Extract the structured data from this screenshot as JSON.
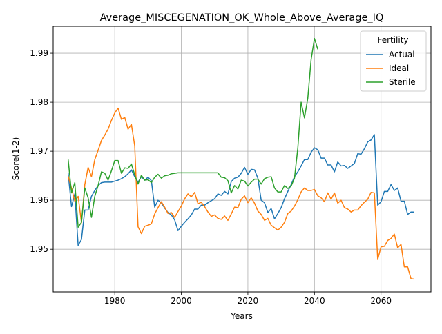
{
  "chart_data": {
    "type": "line",
    "title": "Average_MISCEGENATION_OK_Whole_Above_Average_IQ",
    "xlabel": "Years",
    "ylabel": "Score(1-2)",
    "xlim": [
      1961.5,
      2075
    ],
    "ylim": [
      1.9413,
      1.9955
    ],
    "x_ticks": [
      1980,
      2000,
      2020,
      2040,
      2060
    ],
    "x_tick_labels": [
      "1980",
      "2000",
      "2020",
      "2040",
      "2060"
    ],
    "y_ticks": [
      1.95,
      1.96,
      1.97,
      1.98,
      1.99
    ],
    "y_tick_labels": [
      "1.95",
      "1.96",
      "1.97",
      "1.98",
      "1.99"
    ],
    "grid": true,
    "legend": {
      "title": "Fertility",
      "placement": "top-right"
    },
    "series": [
      {
        "name": "Actual",
        "color": "#1f77b4",
        "x": [
          1966,
          1967,
          1968,
          1969,
          1970,
          1971,
          1972,
          1973,
          1974,
          1975,
          1976,
          1977,
          1978,
          1979,
          1980,
          1981,
          1982,
          1983,
          1984,
          1985,
          1986,
          1987,
          1988,
          1989,
          1990,
          1991,
          1992,
          1993,
          1994,
          1995,
          1996,
          1997,
          1998,
          1999,
          2000,
          2001,
          2002,
          2003,
          2004,
          2005,
          2006,
          2007,
          2008,
          2009,
          2010,
          2011,
          2012,
          2013,
          2014,
          2015,
          2016,
          2017,
          2018,
          2019,
          2020,
          2021,
          2022,
          2023,
          2024,
          2025,
          2026,
          2027,
          2028,
          2029,
          2030,
          2031,
          2032,
          2033,
          2034,
          2035,
          2036,
          2037,
          2038,
          2039,
          2040,
          2041,
          2042,
          2043,
          2044,
          2045,
          2046,
          2047,
          2048,
          2049,
          2050,
          2051,
          2052,
          2053,
          2054,
          2055,
          2056,
          2057,
          2058,
          2059,
          2060,
          2061,
          2062,
          2063,
          2064,
          2065,
          2066,
          2067,
          2068,
          2069,
          2070
        ],
        "values": [
          1.9655,
          1.9587,
          1.9613,
          1.9508,
          1.952,
          1.958,
          1.958,
          1.9608,
          1.962,
          1.963,
          1.9636,
          1.9637,
          1.9637,
          1.9637,
          1.9639,
          1.9641,
          1.9644,
          1.9648,
          1.9654,
          1.9662,
          1.9648,
          1.9637,
          1.9648,
          1.9641,
          1.9647,
          1.964,
          1.9586,
          1.96,
          1.9595,
          1.9584,
          1.9575,
          1.957,
          1.956,
          1.9538,
          1.9547,
          1.9555,
          1.9562,
          1.957,
          1.9582,
          1.9582,
          1.959,
          1.959,
          1.9595,
          1.9599,
          1.9603,
          1.9613,
          1.961,
          1.9618,
          1.9613,
          1.9638,
          1.9645,
          1.9647,
          1.9655,
          1.9667,
          1.9653,
          1.9663,
          1.9662,
          1.9645,
          1.96,
          1.9595,
          1.9575,
          1.9583,
          1.9562,
          1.9573,
          1.9585,
          1.9603,
          1.9618,
          1.9632,
          1.9648,
          1.9658,
          1.967,
          1.9683,
          1.9683,
          1.9698,
          1.9707,
          1.9703,
          1.9686,
          1.9686,
          1.9672,
          1.9672,
          1.9658,
          1.9678,
          1.967,
          1.9671,
          1.9665,
          1.967,
          1.9675,
          1.9695,
          1.9694,
          1.9705,
          1.9719,
          1.9723,
          1.9734,
          1.959,
          1.9597,
          1.9618,
          1.9618,
          1.9632,
          1.962,
          1.9625,
          1.9598,
          1.9598,
          1.9571,
          1.9576,
          1.9576
        ]
      },
      {
        "name": "Ideal",
        "color": "#ff7f0e",
        "x": [
          1966,
          1967,
          1968,
          1969,
          1970,
          1971,
          1972,
          1973,
          1974,
          1975,
          1976,
          1977,
          1978,
          1979,
          1980,
          1981,
          1982,
          1983,
          1984,
          1985,
          1986,
          1987,
          1988,
          1989,
          1990,
          1991,
          1992,
          1993,
          1994,
          1995,
          1996,
          1997,
          1998,
          1999,
          2000,
          2001,
          2002,
          2003,
          2004,
          2005,
          2006,
          2007,
          2008,
          2009,
          2010,
          2011,
          2012,
          2013,
          2014,
          2015,
          2016,
          2017,
          2018,
          2019,
          2020,
          2021,
          2022,
          2023,
          2024,
          2025,
          2026,
          2027,
          2028,
          2029,
          2030,
          2031,
          2032,
          2033,
          2034,
          2035,
          2036,
          2037,
          2038,
          2039,
          2040,
          2041,
          2042,
          2043,
          2044,
          2045,
          2046,
          2047,
          2048,
          2049,
          2050,
          2051,
          2052,
          2053,
          2054,
          2055,
          2056,
          2057,
          2058,
          2059,
          2060,
          2061,
          2062,
          2063,
          2064,
          2065,
          2066,
          2067,
          2068,
          2069,
          2070
        ],
        "values": [
          1.9649,
          1.9625,
          1.9598,
          1.9608,
          1.9554,
          1.9632,
          1.9667,
          1.9648,
          1.9683,
          1.9702,
          1.9722,
          1.9733,
          1.9745,
          1.9763,
          1.9778,
          1.9788,
          1.9765,
          1.9769,
          1.9745,
          1.9755,
          1.9711,
          1.9546,
          1.9532,
          1.9547,
          1.9549,
          1.9552,
          1.9572,
          1.9585,
          1.9597,
          1.9586,
          1.9573,
          1.9575,
          1.9565,
          1.9577,
          1.9588,
          1.9603,
          1.9613,
          1.9607,
          1.9616,
          1.9593,
          1.9596,
          1.9587,
          1.9576,
          1.9567,
          1.957,
          1.9563,
          1.9561,
          1.9568,
          1.9559,
          1.9572,
          1.9586,
          1.9585,
          1.9602,
          1.9609,
          1.9595,
          1.9605,
          1.9594,
          1.9578,
          1.9571,
          1.9559,
          1.9563,
          1.9549,
          1.9544,
          1.9539,
          1.9545,
          1.9555,
          1.9573,
          1.9578,
          1.9588,
          1.9601,
          1.9617,
          1.9625,
          1.962,
          1.962,
          1.9622,
          1.9609,
          1.9605,
          1.9597,
          1.9615,
          1.9602,
          1.9615,
          1.9594,
          1.96,
          1.9585,
          1.9582,
          1.9576,
          1.958,
          1.958,
          1.9589,
          1.9596,
          1.9602,
          1.9616,
          1.9615,
          1.9479,
          1.9505,
          1.9506,
          1.9518,
          1.9522,
          1.9531,
          1.9503,
          1.951,
          1.9464,
          1.9464,
          1.944,
          1.9439
        ]
      },
      {
        "name": "Sterile",
        "color": "#2ca02c",
        "x": [
          1966,
          1967,
          1968,
          1969,
          1970,
          1971,
          1972,
          1973,
          1974,
          1975,
          1976,
          1977,
          1978,
          1979,
          1980,
          1981,
          1982,
          1983,
          1984,
          1985,
          1986,
          1987,
          1988,
          1989,
          1990,
          1991,
          1992,
          1993,
          1994,
          1995,
          1996,
          1997,
          1998,
          1999,
          2000,
          2001,
          2002,
          2003,
          2004,
          2005,
          2006,
          2007,
          2008,
          2009,
          2010,
          2011,
          2012,
          2013,
          2014,
          2015,
          2016,
          2017,
          2018,
          2019,
          2020,
          2021,
          2022,
          2023,
          2024,
          2025,
          2026,
          2027,
          2028,
          2029,
          2030,
          2031,
          2032,
          2033,
          2034,
          2035,
          2036,
          2037,
          2038,
          2039,
          2040,
          2041
        ],
        "values": [
          1.9683,
          1.9615,
          1.9636,
          1.9545,
          1.9555,
          1.9625,
          1.9605,
          1.9565,
          1.9608,
          1.963,
          1.9658,
          1.9655,
          1.9641,
          1.966,
          1.9681,
          1.9681,
          1.9655,
          1.9666,
          1.9665,
          1.9674,
          1.9652,
          1.9633,
          1.9651,
          1.9641,
          1.9642,
          1.9636,
          1.9647,
          1.9653,
          1.9645,
          1.965,
          1.9651,
          1.9654,
          1.9655,
          1.9656,
          1.9656,
          1.9656,
          1.9656,
          1.9656,
          1.9656,
          1.9656,
          1.9656,
          1.9656,
          1.9656,
          1.9656,
          1.9656,
          1.9656,
          1.9647,
          1.9646,
          1.964,
          1.9615,
          1.963,
          1.9623,
          1.9641,
          1.9639,
          1.9629,
          1.9637,
          1.9643,
          1.9643,
          1.9633,
          1.9644,
          1.9647,
          1.9648,
          1.9625,
          1.9617,
          1.9617,
          1.963,
          1.9624,
          1.9629,
          1.9645,
          1.9706,
          1.98,
          1.9768,
          1.9808,
          1.9887,
          1.993,
          1.9908
        ]
      }
    ]
  }
}
